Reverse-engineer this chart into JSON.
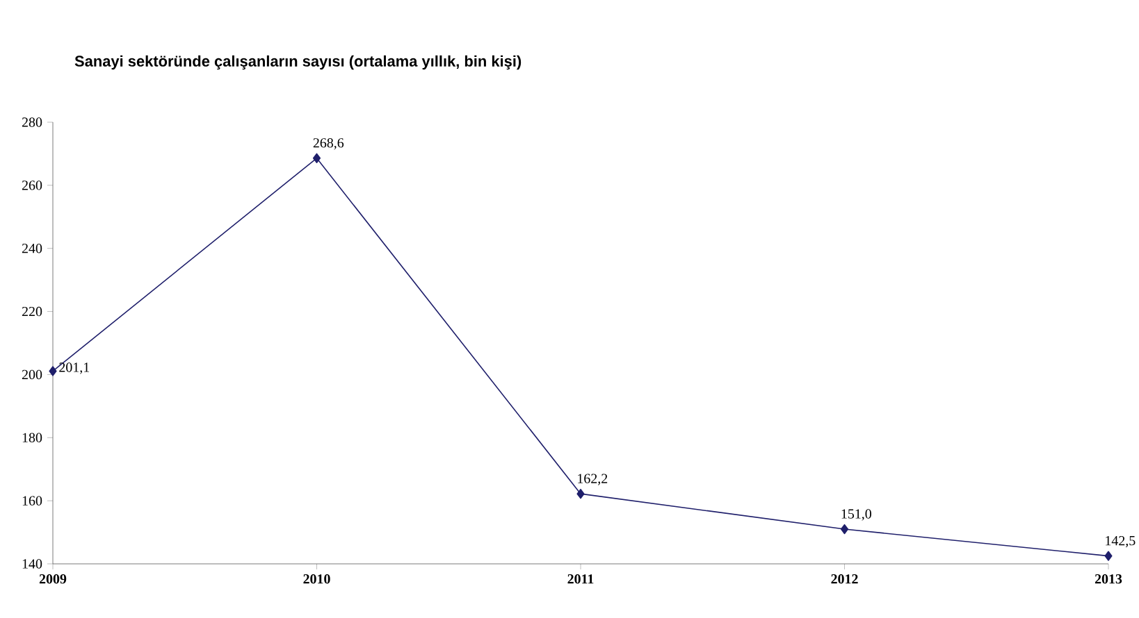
{
  "chart_data": {
    "type": "line",
    "title": "Sanayi sektöründe çalışanların sayısı (ortalama yıllık, bin kişi)",
    "categories": [
      "2009",
      "2010",
      "2011",
      "2012",
      "2013"
    ],
    "values": [
      201.1,
      268.6,
      162.2,
      151.0,
      142.5
    ],
    "value_labels": [
      "201,1",
      "268,6",
      "162,2",
      "151,0",
      "142,5"
    ],
    "color": "#1f1f6b",
    "marker": "diamond",
    "line_style": "solid",
    "ylim": [
      140,
      280
    ],
    "yticks": [
      140,
      160,
      180,
      200,
      220,
      240,
      260,
      280
    ]
  }
}
